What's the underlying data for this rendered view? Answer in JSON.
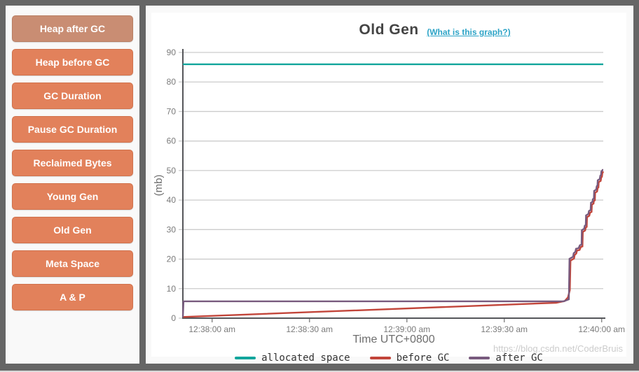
{
  "sidebar": {
    "buttons": [
      {
        "label": "Heap after GC",
        "state": "active"
      },
      {
        "label": "Heap before GC",
        "state": "normal"
      },
      {
        "label": "GC Duration",
        "state": "normal"
      },
      {
        "label": "Pause GC Duration",
        "state": "normal"
      },
      {
        "label": "Reclaimed Bytes",
        "state": "normal"
      },
      {
        "label": "Young Gen",
        "state": "normal"
      },
      {
        "label": "Old Gen",
        "state": "normal"
      },
      {
        "label": "Meta Space",
        "state": "normal"
      },
      {
        "label": "A & P",
        "state": "normal"
      }
    ]
  },
  "header": {
    "title": "Old Gen",
    "help_link": "(What is this graph?)"
  },
  "watermark": "https://blog.csdn.net/CoderBruis",
  "colors": {
    "frame": "#666666",
    "panel_bg": "#f9f9f9",
    "button_orange": "#e2815b",
    "button_active": "#c98d73",
    "link_teal": "#2da4c7",
    "grid": "#cccccc",
    "axis": "#55565a",
    "tick_text": "#7a7a7a",
    "allocated_teal": "#12a59c",
    "before_red": "#c2453a",
    "after_purple": "#785a7e"
  },
  "chart_data": {
    "type": "line",
    "title": "Old Gen",
    "xlabel": "Time UTC+0800",
    "ylabel": "(mb)",
    "ylim": [
      0,
      90
    ],
    "y_ticks": [
      0,
      10,
      20,
      30,
      40,
      50,
      60,
      70,
      80,
      90
    ],
    "x_domain_seconds": [
      -9,
      120.5
    ],
    "x_ticks": [
      {
        "t": 0,
        "label": "12:38:00 am"
      },
      {
        "t": 30,
        "label": "12:38:30 am"
      },
      {
        "t": 60,
        "label": "12:39:00 am"
      },
      {
        "t": 90,
        "label": "12:39:30 am"
      },
      {
        "t": 120,
        "label": "12:40:00 am"
      }
    ],
    "grid": true,
    "legend_position": "bottom",
    "series": [
      {
        "name": "allocated space",
        "color": "#12a59c",
        "points": [
          [
            -9,
            86
          ],
          [
            120.5,
            86
          ]
        ]
      },
      {
        "name": "before GC",
        "color": "#c2453a",
        "points": [
          [
            -9,
            0.4
          ],
          [
            106,
            5.2
          ],
          [
            108.6,
            5.8
          ],
          [
            109.6,
            7
          ],
          [
            110.2,
            9.5
          ],
          [
            110.4,
            19.5
          ],
          [
            111.5,
            20.2
          ],
          [
            111.7,
            21.4
          ],
          [
            112.2,
            21.9
          ],
          [
            112.4,
            22.9
          ],
          [
            113.2,
            23.1
          ],
          [
            113.6,
            24.1
          ],
          [
            114.1,
            24.3
          ],
          [
            114.2,
            29.2
          ],
          [
            114.9,
            29.7
          ],
          [
            115.1,
            30.7
          ],
          [
            115.4,
            30.9
          ],
          [
            115.5,
            34.2
          ],
          [
            116.2,
            34.7
          ],
          [
            116.4,
            35.7
          ],
          [
            116.9,
            36
          ],
          [
            117,
            38.5
          ],
          [
            117.5,
            38.8
          ],
          [
            117.6,
            39.7
          ],
          [
            117.9,
            39.9
          ],
          [
            118,
            42.5
          ],
          [
            118.6,
            42.9
          ],
          [
            118.8,
            44.1
          ],
          [
            119,
            44.3
          ],
          [
            119.1,
            46.1
          ],
          [
            119.7,
            46.5
          ],
          [
            119.9,
            47.7
          ],
          [
            120.1,
            47.9
          ],
          [
            120.2,
            49
          ],
          [
            120.5,
            49.7
          ]
        ]
      },
      {
        "name": "after GC",
        "color": "#785a7e",
        "points": [
          [
            -9,
            0.4
          ],
          [
            -8.8,
            5.7
          ],
          [
            108.3,
            5.7
          ],
          [
            109.9,
            6.4
          ],
          [
            110.1,
            20.1
          ],
          [
            111.2,
            20.8
          ],
          [
            111.4,
            22
          ],
          [
            111.9,
            22.5
          ],
          [
            112.1,
            23.5
          ],
          [
            112.9,
            23.7
          ],
          [
            113.3,
            24.7
          ],
          [
            113.8,
            24.9
          ],
          [
            113.9,
            29.8
          ],
          [
            114.6,
            30.3
          ],
          [
            114.8,
            31.3
          ],
          [
            115.1,
            31.5
          ],
          [
            115.2,
            34.8
          ],
          [
            115.9,
            35.3
          ],
          [
            116.1,
            36.3
          ],
          [
            116.6,
            36.6
          ],
          [
            116.7,
            39.1
          ],
          [
            117.2,
            39.4
          ],
          [
            117.3,
            40.3
          ],
          [
            117.6,
            40.5
          ],
          [
            117.7,
            43.1
          ],
          [
            118.3,
            43.5
          ],
          [
            118.5,
            44.7
          ],
          [
            118.7,
            44.9
          ],
          [
            118.8,
            46.7
          ],
          [
            119.4,
            47.1
          ],
          [
            119.6,
            48.3
          ],
          [
            119.8,
            48.5
          ],
          [
            119.9,
            49.6
          ],
          [
            120.3,
            50.2
          ],
          [
            120.5,
            50.2
          ]
        ]
      }
    ]
  }
}
